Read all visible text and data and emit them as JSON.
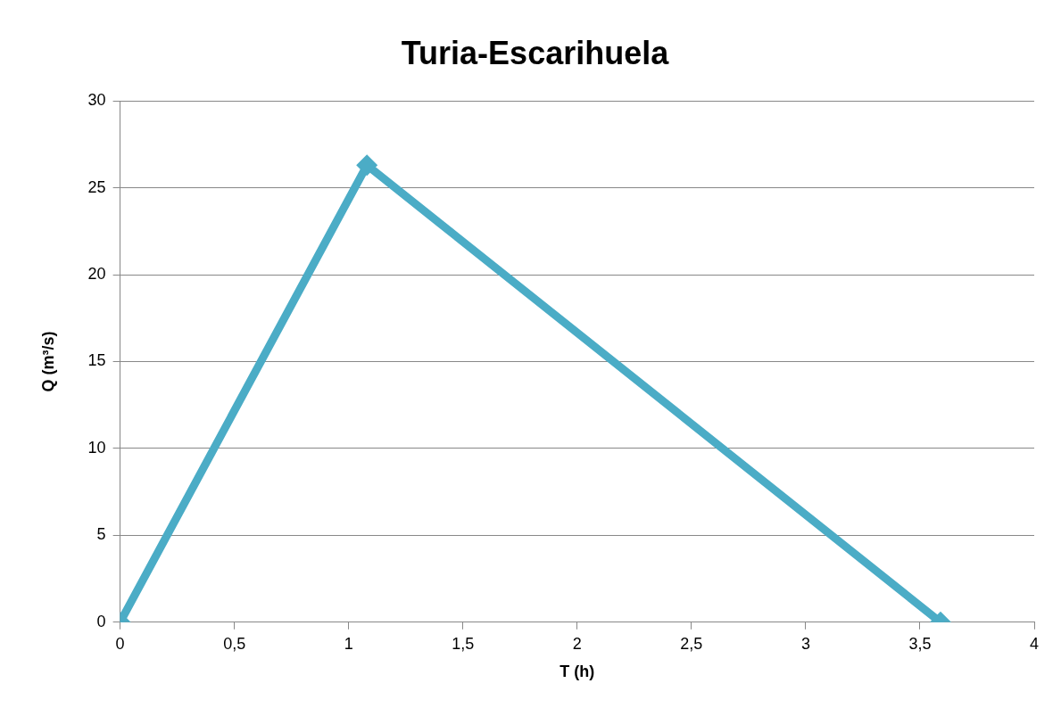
{
  "chart_data": {
    "type": "line",
    "title": "Turia-Escarihuela",
    "xlabel": "T (h)",
    "ylabel": "Q (m³/s)",
    "x": [
      0,
      1.08,
      3.59
    ],
    "series": [
      {
        "color": "#4bacc6",
        "values": [
          0,
          26.3,
          0
        ]
      }
    ],
    "xlim": [
      0,
      4
    ],
    "xticks": [
      0,
      {
        "value": 0.5,
        "label": "0,5"
      },
      1,
      {
        "value": 1.5,
        "label": "1,5"
      },
      2,
      {
        "value": 2.5,
        "label": "2,5"
      },
      3,
      {
        "value": 3.5,
        "label": "3,5"
      },
      4
    ],
    "ylim": [
      0,
      30
    ],
    "yticks": [
      0,
      5,
      10,
      15,
      20,
      25,
      30
    ],
    "grid": "y",
    "legend": false,
    "marker": "diamond",
    "line_style": "solid"
  }
}
